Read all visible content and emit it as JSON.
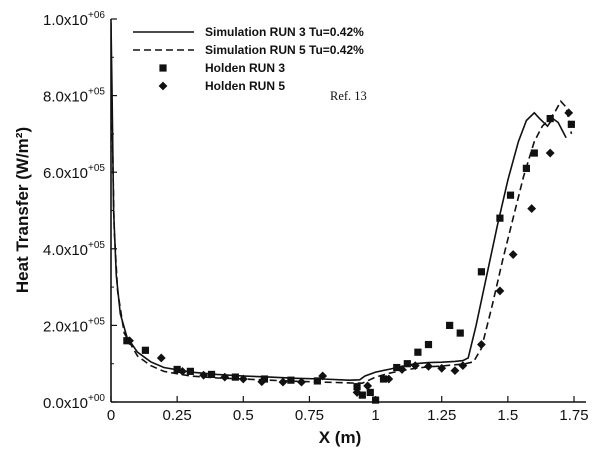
{
  "chart_data": {
    "type": "line",
    "xlabel": "X (m)",
    "ylabel": "Heat Transfer (W/m²)",
    "xlim": [
      0,
      1.75
    ],
    "ylim": [
      0,
      1000000
    ],
    "grid": false,
    "legend_position": "top-center",
    "x_ticks": [
      {
        "value": 0,
        "label": "0"
      },
      {
        "value": 0.25,
        "label": "0.25"
      },
      {
        "value": 0.5,
        "label": "0.5"
      },
      {
        "value": 0.75,
        "label": "0.75"
      },
      {
        "value": 1,
        "label": "1"
      },
      {
        "value": 1.25,
        "label": "1.25"
      },
      {
        "value": 1.5,
        "label": "1.5"
      },
      {
        "value": 1.75,
        "label": "1.75"
      }
    ],
    "y_ticks": [
      {
        "value": 0,
        "mantissa": "0.0x10",
        "exp": "+00"
      },
      {
        "value": 200000,
        "mantissa": "2.0x10",
        "exp": "+05"
      },
      {
        "value": 400000,
        "mantissa": "4.0x10",
        "exp": "+05"
      },
      {
        "value": 600000,
        "mantissa": "6.0x10",
        "exp": "+05"
      },
      {
        "value": 800000,
        "mantissa": "8.0x10",
        "exp": "+05"
      },
      {
        "value": 1000000,
        "mantissa": "1.0x10",
        "exp": "+06"
      }
    ],
    "reference_note": "Ref. 13",
    "series": [
      {
        "name": "Simulation RUN 3 Tu=0.42%",
        "kind": "line",
        "dash": "solid",
        "color": "#111111",
        "points": [
          [
            0.0,
            990000
          ],
          [
            0.004,
            800000
          ],
          [
            0.01,
            500000
          ],
          [
            0.02,
            330000
          ],
          [
            0.035,
            230000
          ],
          [
            0.06,
            170000
          ],
          [
            0.1,
            130000
          ],
          [
            0.15,
            105000
          ],
          [
            0.2,
            90000
          ],
          [
            0.3,
            78000
          ],
          [
            0.4,
            72000
          ],
          [
            0.5,
            68000
          ],
          [
            0.6,
            65000
          ],
          [
            0.7,
            62000
          ],
          [
            0.8,
            60000
          ],
          [
            0.9,
            57000
          ],
          [
            0.94,
            58000
          ],
          [
            0.96,
            68000
          ],
          [
            1.0,
            78000
          ],
          [
            1.05,
            85000
          ],
          [
            1.1,
            93000
          ],
          [
            1.15,
            100000
          ],
          [
            1.2,
            103000
          ],
          [
            1.25,
            104000
          ],
          [
            1.3,
            106000
          ],
          [
            1.33,
            108000
          ],
          [
            1.35,
            115000
          ],
          [
            1.38,
            200000
          ],
          [
            1.42,
            330000
          ],
          [
            1.46,
            460000
          ],
          [
            1.5,
            580000
          ],
          [
            1.54,
            680000
          ],
          [
            1.57,
            735000
          ],
          [
            1.6,
            755000
          ],
          [
            1.62,
            740000
          ],
          [
            1.65,
            720000
          ],
          [
            1.67,
            740000
          ],
          [
            1.69,
            730000
          ],
          [
            1.72,
            690000
          ]
        ]
      },
      {
        "name": "Simulation RUN 5 Tu=0.42%",
        "kind": "line",
        "dash": "dashed",
        "color": "#111111",
        "points": [
          [
            0.0,
            900000
          ],
          [
            0.005,
            700000
          ],
          [
            0.012,
            450000
          ],
          [
            0.025,
            290000
          ],
          [
            0.05,
            180000
          ],
          [
            0.1,
            120000
          ],
          [
            0.15,
            95000
          ],
          [
            0.2,
            80000
          ],
          [
            0.3,
            68000
          ],
          [
            0.4,
            63000
          ],
          [
            0.5,
            60000
          ],
          [
            0.6,
            57000
          ],
          [
            0.7,
            54000
          ],
          [
            0.8,
            52000
          ],
          [
            0.9,
            50000
          ],
          [
            0.95,
            49000
          ],
          [
            1.0,
            65000
          ],
          [
            1.05,
            75000
          ],
          [
            1.1,
            82000
          ],
          [
            1.15,
            88000
          ],
          [
            1.2,
            92000
          ],
          [
            1.25,
            94000
          ],
          [
            1.3,
            97000
          ],
          [
            1.34,
            100000
          ],
          [
            1.37,
            105000
          ],
          [
            1.4,
            140000
          ],
          [
            1.44,
            250000
          ],
          [
            1.48,
            370000
          ],
          [
            1.52,
            480000
          ],
          [
            1.56,
            590000
          ],
          [
            1.6,
            680000
          ],
          [
            1.63,
            720000
          ],
          [
            1.66,
            740000
          ],
          [
            1.68,
            760000
          ],
          [
            1.7,
            785000
          ],
          [
            1.72,
            770000
          ],
          [
            1.74,
            700000
          ]
        ]
      },
      {
        "name": "Holden RUN 3",
        "kind": "scatter",
        "marker": "square",
        "color": "#111111",
        "points": [
          [
            0.06,
            160000
          ],
          [
            0.13,
            135000
          ],
          [
            0.25,
            85000
          ],
          [
            0.3,
            80000
          ],
          [
            0.38,
            72000
          ],
          [
            0.47,
            65000
          ],
          [
            0.58,
            60000
          ],
          [
            0.68,
            57000
          ],
          [
            0.78,
            55000
          ],
          [
            0.93,
            40000
          ],
          [
            0.95,
            18000
          ],
          [
            0.98,
            25000
          ],
          [
            1.0,
            5000
          ],
          [
            1.03,
            60000
          ],
          [
            1.08,
            90000
          ],
          [
            1.12,
            100000
          ],
          [
            1.16,
            130000
          ],
          [
            1.2,
            150000
          ],
          [
            1.28,
            200000
          ],
          [
            1.32,
            180000
          ],
          [
            1.4,
            340000
          ],
          [
            1.47,
            480000
          ],
          [
            1.51,
            540000
          ],
          [
            1.57,
            610000
          ],
          [
            1.6,
            650000
          ],
          [
            1.66,
            740000
          ],
          [
            1.74,
            725000
          ]
        ]
      },
      {
        "name": "Holden RUN 5",
        "kind": "scatter",
        "marker": "diamond",
        "color": "#111111",
        "points": [
          [
            0.07,
            160000
          ],
          [
            0.19,
            115000
          ],
          [
            0.27,
            80000
          ],
          [
            0.35,
            70000
          ],
          [
            0.43,
            65000
          ],
          [
            0.5,
            60000
          ],
          [
            0.57,
            53000
          ],
          [
            0.65,
            52000
          ],
          [
            0.72,
            52000
          ],
          [
            0.8,
            68000
          ],
          [
            0.93,
            25000
          ],
          [
            0.97,
            42000
          ],
          [
            1.05,
            60000
          ],
          [
            1.1,
            85000
          ],
          [
            1.15,
            95000
          ],
          [
            1.2,
            93000
          ],
          [
            1.25,
            88000
          ],
          [
            1.3,
            82000
          ],
          [
            1.33,
            95000
          ],
          [
            1.4,
            150000
          ],
          [
            1.47,
            290000
          ],
          [
            1.52,
            385000
          ],
          [
            1.59,
            505000
          ],
          [
            1.66,
            650000
          ],
          [
            1.73,
            755000
          ]
        ]
      }
    ]
  }
}
